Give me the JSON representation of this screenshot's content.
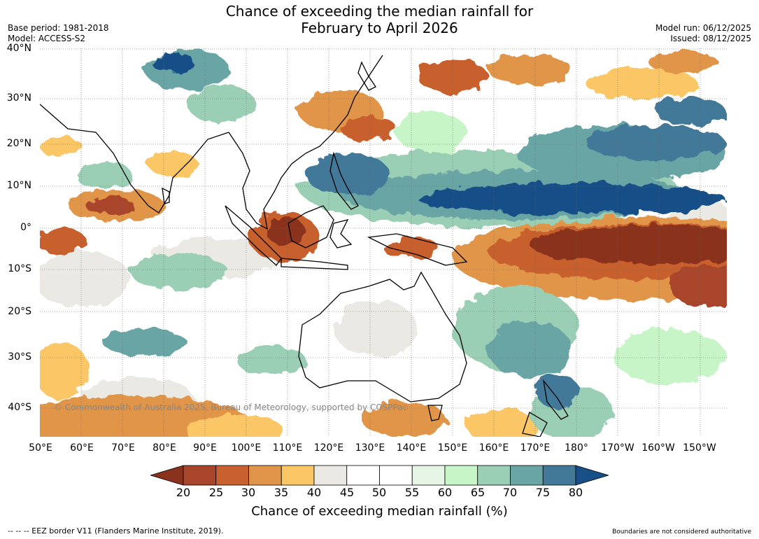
{
  "title": "Chance of exceeding the median rainfall for\nFebruary to April 2026",
  "title_line1": "Chance of exceeding the median rainfall for",
  "title_line2": "February to April 2026",
  "base_period": "Base period: 1981-2018",
  "model": "Model: ACCESS-S2",
  "model_run": "Model run: 06/12/2025",
  "issued": "Issued: 08/12/2025",
  "lat_labels": [
    "40°N",
    "30°N",
    "20°N",
    "10°N",
    "0°",
    "10°S",
    "20°S",
    "30°S",
    "40°S"
  ],
  "lon_labels": [
    "50°E",
    "60°E",
    "70°E",
    "80°E",
    "90°E",
    "100°E",
    "110°E",
    "120°E",
    "130°E",
    "140°E",
    "150°E",
    "160°E",
    "170°E",
    "180°",
    "170°W",
    "160°W",
    "150°W"
  ],
  "copyright": "© Commonwealth of Australia 2025, Bureau of Meteorology, supported by COSPPac",
  "colorbar": {
    "ticks": [
      "20",
      "25",
      "30",
      "35",
      "40",
      "45",
      "50",
      "55",
      "60",
      "65",
      "70",
      "75",
      "80"
    ],
    "colors": [
      "#8b321e",
      "#a8452a",
      "#c8612f",
      "#e0954a",
      "#fbc766",
      "#ebe9e4",
      "#ffffff",
      "#ffffff",
      "#e6f5e6",
      "#c8f5c8",
      "#9bcfb5",
      "#6aa5a5",
      "#427898",
      "#174f87"
    ],
    "title": "Chance of exceeding median rainfall (%)"
  },
  "eez_note": "--  --  -- EEZ border V11 (Flanders Marine Institute, 2019).",
  "boundaries_note": "Boundaries are not considered authoritative"
}
